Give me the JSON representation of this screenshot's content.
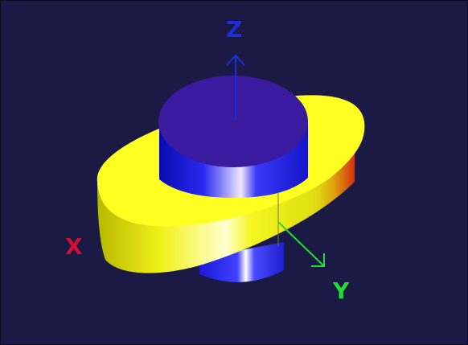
{
  "scene": {
    "background": "#1a1a44",
    "axes": {
      "x": {
        "label": "X",
        "color": "#cc1133"
      },
      "y": {
        "label": "Y",
        "color": "#22dd33"
      },
      "z": {
        "label": "Z",
        "color": "#1a2fd6"
      }
    },
    "objects": {
      "cylinder": {
        "color_top": "#3a1a9e",
        "color_side": "#1a14e6"
      },
      "ellipsoid_disc": {
        "color_top": "#ffff22",
        "color_side": "#e6e61a"
      }
    }
  }
}
